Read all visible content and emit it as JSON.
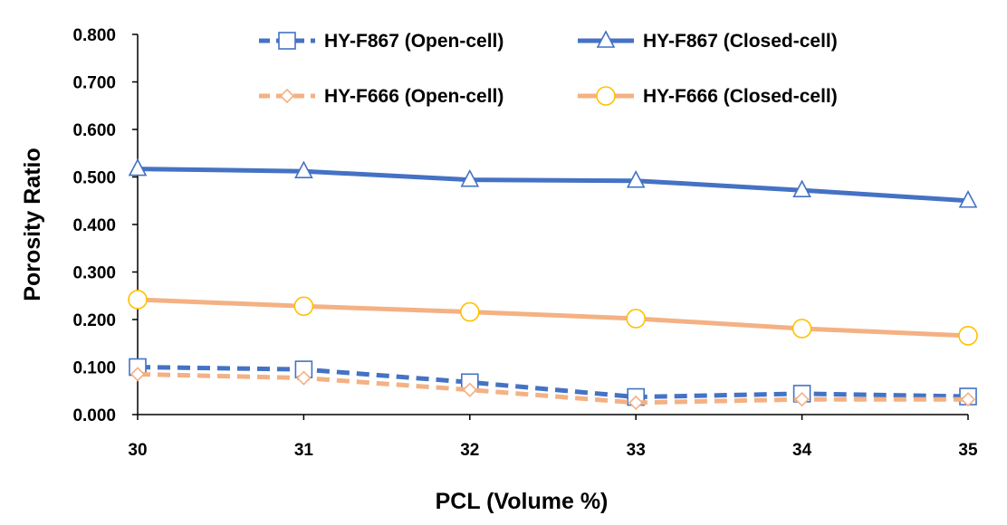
{
  "chart_data": {
    "type": "line",
    "x": [
      30,
      31,
      32,
      33,
      34,
      35
    ],
    "x_tick_labels": [
      "30",
      "31",
      "32",
      "33",
      "34",
      "35"
    ],
    "y_tick_labels": [
      "0.000",
      "0.100",
      "0.200",
      "0.300",
      "0.400",
      "0.500",
      "0.600",
      "0.700",
      "0.800"
    ],
    "xlim": [
      30,
      35
    ],
    "ylim": [
      0,
      0.8
    ],
    "xlabel": "PCL (Volume %)",
    "ylabel": "Porosity Ratio",
    "grid": false,
    "legend_position": "top",
    "series": [
      {
        "name": "HY-F867 (Open-cell)",
        "values": [
          0.1,
          0.095,
          0.068,
          0.037,
          0.044,
          0.038
        ],
        "color": "#4472C4",
        "line_style": "dashed",
        "marker": "square"
      },
      {
        "name": "HY-F867 (Closed-cell)",
        "values": [
          0.517,
          0.512,
          0.494,
          0.492,
          0.472,
          0.45
        ],
        "color": "#4472C4",
        "line_style": "solid",
        "marker": "triangle"
      },
      {
        "name": "HY-F666 (Open-cell)",
        "values": [
          0.085,
          0.077,
          0.052,
          0.025,
          0.032,
          0.032
        ],
        "color": "#F4B183",
        "line_style": "dashed",
        "marker": "diamond"
      },
      {
        "name": "HY-F666 (Closed-cell)",
        "values": [
          0.242,
          0.228,
          0.216,
          0.202,
          0.181,
          0.166
        ],
        "color": "#F4B183",
        "marker_color": "#FFC000",
        "line_style": "solid",
        "marker": "circle"
      }
    ]
  }
}
